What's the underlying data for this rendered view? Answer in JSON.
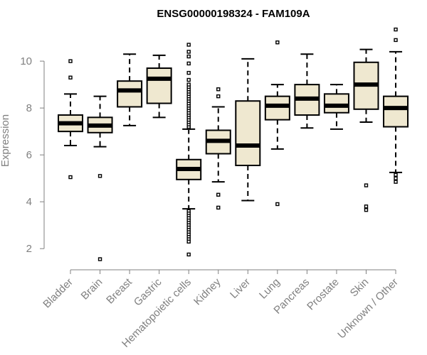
{
  "chart_data": {
    "type": "boxplot",
    "title": "ENSG00000198324 - FAM109A",
    "xlabel": "",
    "ylabel": "Expression",
    "ylim": [
      1.4,
      11.7
    ],
    "yticks": [
      2,
      4,
      6,
      8,
      10
    ],
    "box_fill": "#efe8d0",
    "categories": [
      "Bladder",
      "Brain",
      "Breast",
      "Gastric",
      "Hematopoietic cells",
      "Kidney",
      "Liver",
      "Lung",
      "Pancreas",
      "Prostate",
      "Skin",
      "Unknown / Other"
    ],
    "boxes": [
      {
        "name": "Bladder",
        "whisker_low": 6.4,
        "q1": 7.0,
        "median": 7.35,
        "q3": 7.7,
        "whisker_high": 8.6,
        "outliers": [
          5.05,
          9.3,
          10.0
        ]
      },
      {
        "name": "Brain",
        "whisker_low": 6.35,
        "q1": 6.95,
        "median": 7.25,
        "q3": 7.6,
        "whisker_high": 8.5,
        "outliers": [
          5.1,
          1.55
        ]
      },
      {
        "name": "Breast",
        "whisker_low": 7.25,
        "q1": 8.05,
        "median": 8.75,
        "q3": 9.15,
        "whisker_high": 10.3,
        "outliers": []
      },
      {
        "name": "Gastric",
        "whisker_low": 7.6,
        "q1": 8.2,
        "median": 9.25,
        "q3": 9.7,
        "whisker_high": 10.25,
        "outliers": []
      },
      {
        "name": "Hematopoietic cells",
        "whisker_low": 3.7,
        "q1": 4.95,
        "median": 5.4,
        "q3": 5.8,
        "whisker_high": 7.1,
        "outliers": [
          7.15,
          7.2,
          7.3,
          7.4,
          7.5,
          7.6,
          7.7,
          7.8,
          7.9,
          8.0,
          8.1,
          8.2,
          8.3,
          8.4,
          8.5,
          8.6,
          8.7,
          8.8,
          8.9,
          9.0,
          9.2,
          9.5,
          9.9,
          10.2,
          10.4,
          10.7,
          3.6,
          3.5,
          3.4,
          3.3,
          3.2,
          3.1,
          3.0,
          2.9,
          2.8,
          2.7,
          2.6,
          2.5,
          2.4,
          2.3,
          1.75
        ]
      },
      {
        "name": "Kidney",
        "whisker_low": 4.85,
        "q1": 6.05,
        "median": 6.6,
        "q3": 7.05,
        "whisker_high": 8.05,
        "outliers": [
          8.5,
          8.8,
          4.3,
          3.75
        ]
      },
      {
        "name": "Liver",
        "whisker_low": 4.05,
        "q1": 5.55,
        "median": 6.4,
        "q3": 8.3,
        "whisker_high": 10.1,
        "outliers": []
      },
      {
        "name": "Lung",
        "whisker_low": 6.25,
        "q1": 7.5,
        "median": 8.1,
        "q3": 8.5,
        "whisker_high": 9.0,
        "outliers": [
          10.8,
          3.9
        ]
      },
      {
        "name": "Pancreas",
        "whisker_low": 7.15,
        "q1": 7.7,
        "median": 8.4,
        "q3": 9.0,
        "whisker_high": 10.3,
        "outliers": []
      },
      {
        "name": "Prostate",
        "whisker_low": 7.1,
        "q1": 7.8,
        "median": 8.1,
        "q3": 8.6,
        "whisker_high": 9.0,
        "outliers": []
      },
      {
        "name": "Skin",
        "whisker_low": 7.4,
        "q1": 7.95,
        "median": 9.0,
        "q3": 9.95,
        "whisker_high": 10.5,
        "outliers": [
          4.7,
          3.8,
          3.65
        ]
      },
      {
        "name": "Unknown / Other",
        "whisker_low": 5.25,
        "q1": 7.2,
        "median": 8.0,
        "q3": 8.5,
        "whisker_high": 10.4,
        "outliers": [
          11.35,
          10.9,
          5.15,
          5.0,
          4.85
        ]
      }
    ]
  }
}
